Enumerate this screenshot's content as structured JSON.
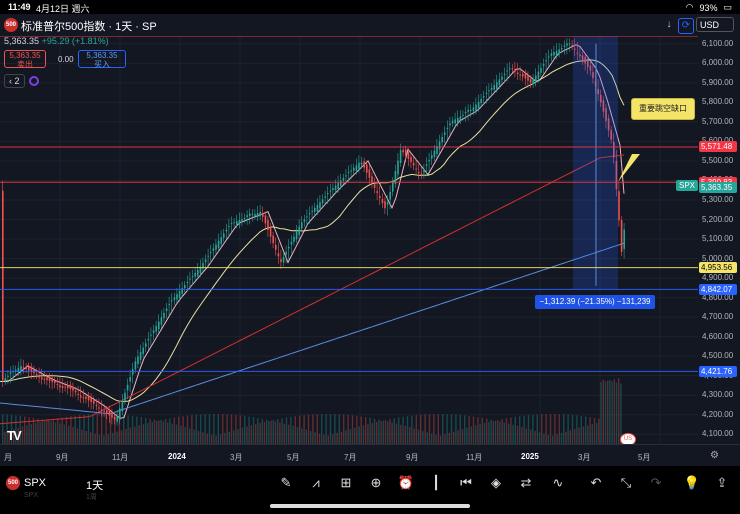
{
  "status_bar": {
    "time": "11:49",
    "date": "4月12日 週六",
    "battery": "93%"
  },
  "header": {
    "logo_text": "500",
    "title": "标准普尔500指数 · 1天 · SP",
    "currency": "USD"
  },
  "quote": {
    "price": "5,363.35",
    "change": "+95.29 (+1.81%)",
    "sell_price": "5,363.35",
    "sell_label": "卖出",
    "spread": "0.00",
    "buy_price": "5,363.35",
    "buy_label": "买入",
    "indicator_count": "2"
  },
  "price_axis": {
    "ticks": [
      "6,100.00",
      "6,000.00",
      "5,900.00",
      "5,800.00",
      "5,700.00",
      "5,600.00",
      "5,500.00",
      "5,400.00",
      "5,300.00",
      "5,200.00",
      "5,100.00",
      "5,000.00",
      "4,900.00",
      "4,800.00",
      "4,700.00",
      "4,600.00",
      "4,500.00",
      "4,400.00",
      "4,300.00",
      "4,200.00",
      "4,100.00"
    ],
    "labels": [
      {
        "text": "5,571.48",
        "price": 5571.48,
        "bg": "#f23645",
        "fg": "#ffffff"
      },
      {
        "text": "5,390.83",
        "price": 5390.83,
        "bg": "#f23645",
        "fg": "#ffffff"
      },
      {
        "text": "5,363.35",
        "price": 5363.35,
        "bg": "#26a69a",
        "fg": "#ffffff"
      },
      {
        "text": "4,953.56",
        "price": 4953.56,
        "bg": "#f5e46a",
        "fg": "#000000"
      },
      {
        "text": "4,842.07",
        "price": 4842.07,
        "bg": "#2962ff",
        "fg": "#ffffff"
      },
      {
        "text": "4,421.76",
        "price": 4421.76,
        "bg": "#2962ff",
        "fg": "#ffffff"
      }
    ],
    "symbol_tag": "SPX",
    "min": 4050,
    "max": 6140
  },
  "annotations": {
    "gap_note": "重要跳空缺口",
    "measure": "−1,312.39 (−21.35%) −131,239"
  },
  "time_axis": [
    {
      "text": "月",
      "bold": false
    },
    {
      "text": "9月",
      "bold": false
    },
    {
      "text": "11月",
      "bold": false
    },
    {
      "text": "2024",
      "bold": true
    },
    {
      "text": "3月",
      "bold": false
    },
    {
      "text": "5月",
      "bold": false
    },
    {
      "text": "7月",
      "bold": false
    },
    {
      "text": "9月",
      "bold": false
    },
    {
      "text": "11月",
      "bold": false
    },
    {
      "text": "2025",
      "bold": true
    },
    {
      "text": "3月",
      "bold": false
    },
    {
      "text": "5月",
      "bold": false
    }
  ],
  "bottom": {
    "logo_text": "500",
    "symbol": "SPX",
    "interval": "1天",
    "ghost_symbol": "SPX",
    "ghost_interval": "1周"
  },
  "colors": {
    "up": "#26a69a",
    "down": "#ef5350",
    "ma_short": "#f0b3c0",
    "ma_mid": "#e8e0a0",
    "ma_long": "#d32f2f",
    "ma_very_long": "#5b8dd9"
  },
  "icons": [
    "pen-icon",
    "chart-type-icon",
    "grid-icon",
    "plus-icon",
    "alarm-icon",
    "candles-icon",
    "replay-icon",
    "layers-icon",
    "settings-sliders-icon",
    "indicator-icon",
    "undo-icon",
    "collapse-icon",
    "redo-icon",
    "idea-icon",
    "share-icon"
  ]
}
